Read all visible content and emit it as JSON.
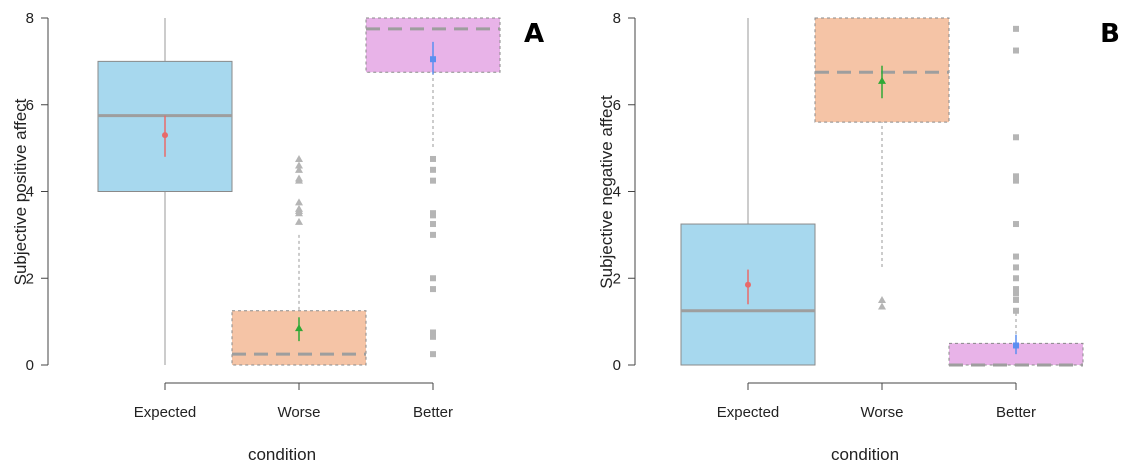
{
  "chart_data": [
    {
      "panel_label": "A",
      "type": "box",
      "xlabel": "condition",
      "ylabel": "Subjective positive affect",
      "ylim": [
        0,
        8
      ],
      "yticks": [
        "0",
        "2",
        "4",
        "6",
        "8"
      ],
      "categories": [
        "Expected",
        "Worse",
        "Better"
      ],
      "colors": [
        "#a7d8ee",
        "#f5c4a6",
        "#e8b3e8"
      ],
      "mean_colors": [
        "#e86a6a",
        "#2fa836",
        "#5b8ff0"
      ],
      "series": [
        {
          "category": "Expected",
          "q1": 4.0,
          "median": 5.75,
          "q3": 7.0,
          "whisker_low": 0.0,
          "whisker_high": 8.0,
          "mean": 5.3,
          "ci": [
            4.8,
            5.75
          ],
          "outliers": []
        },
        {
          "category": "Worse",
          "q1": 0.0,
          "median": 0.25,
          "q3": 1.25,
          "whisker_low": 0.0,
          "whisker_high": 3.0,
          "mean": 0.85,
          "ci": [
            0.55,
            1.1
          ],
          "outliers": [
            3.3,
            3.5,
            3.55,
            3.6,
            3.75,
            4.25,
            4.3,
            4.5,
            4.6,
            4.75
          ]
        },
        {
          "category": "Better",
          "q1": 6.75,
          "median": 7.75,
          "q3": 8.0,
          "whisker_low": 5.0,
          "whisker_high": 8.0,
          "mean": 7.05,
          "ci": [
            6.7,
            7.45
          ],
          "outliers": [
            0.25,
            0.65,
            0.75,
            1.75,
            2.0,
            3.0,
            3.25,
            3.45,
            3.5,
            4.25,
            4.5,
            4.75
          ]
        }
      ]
    },
    {
      "panel_label": "B",
      "type": "box",
      "xlabel": "condition",
      "ylabel": "Subjective negative affect",
      "ylim": [
        0,
        8
      ],
      "yticks": [
        "0",
        "2",
        "4",
        "6",
        "8"
      ],
      "categories": [
        "Expected",
        "Worse",
        "Better"
      ],
      "colors": [
        "#a7d8ee",
        "#f5c4a6",
        "#e8b3e8"
      ],
      "mean_colors": [
        "#e86a6a",
        "#2fa836",
        "#5b8ff0"
      ],
      "series": [
        {
          "category": "Expected",
          "q1": 0.0,
          "median": 1.25,
          "q3": 3.25,
          "whisker_low": 0.0,
          "whisker_high": 8.0,
          "mean": 1.85,
          "ci": [
            1.4,
            2.2
          ],
          "outliers": []
        },
        {
          "category": "Worse",
          "q1": 5.6,
          "median": 6.75,
          "q3": 8.0,
          "whisker_low": 2.25,
          "whisker_high": 8.0,
          "mean": 6.55,
          "ci": [
            6.15,
            6.9
          ],
          "outliers": [
            1.35,
            1.5
          ]
        },
        {
          "category": "Better",
          "q1": 0.0,
          "median": 0.0,
          "q3": 0.5,
          "whisker_low": 0.0,
          "whisker_high": 1.2,
          "mean": 0.45,
          "ci": [
            0.25,
            0.7
          ],
          "outliers": [
            1.25,
            1.5,
            1.65,
            1.75,
            2.0,
            2.25,
            2.5,
            3.25,
            4.25,
            4.35,
            5.25,
            7.25,
            7.75
          ]
        }
      ]
    }
  ]
}
